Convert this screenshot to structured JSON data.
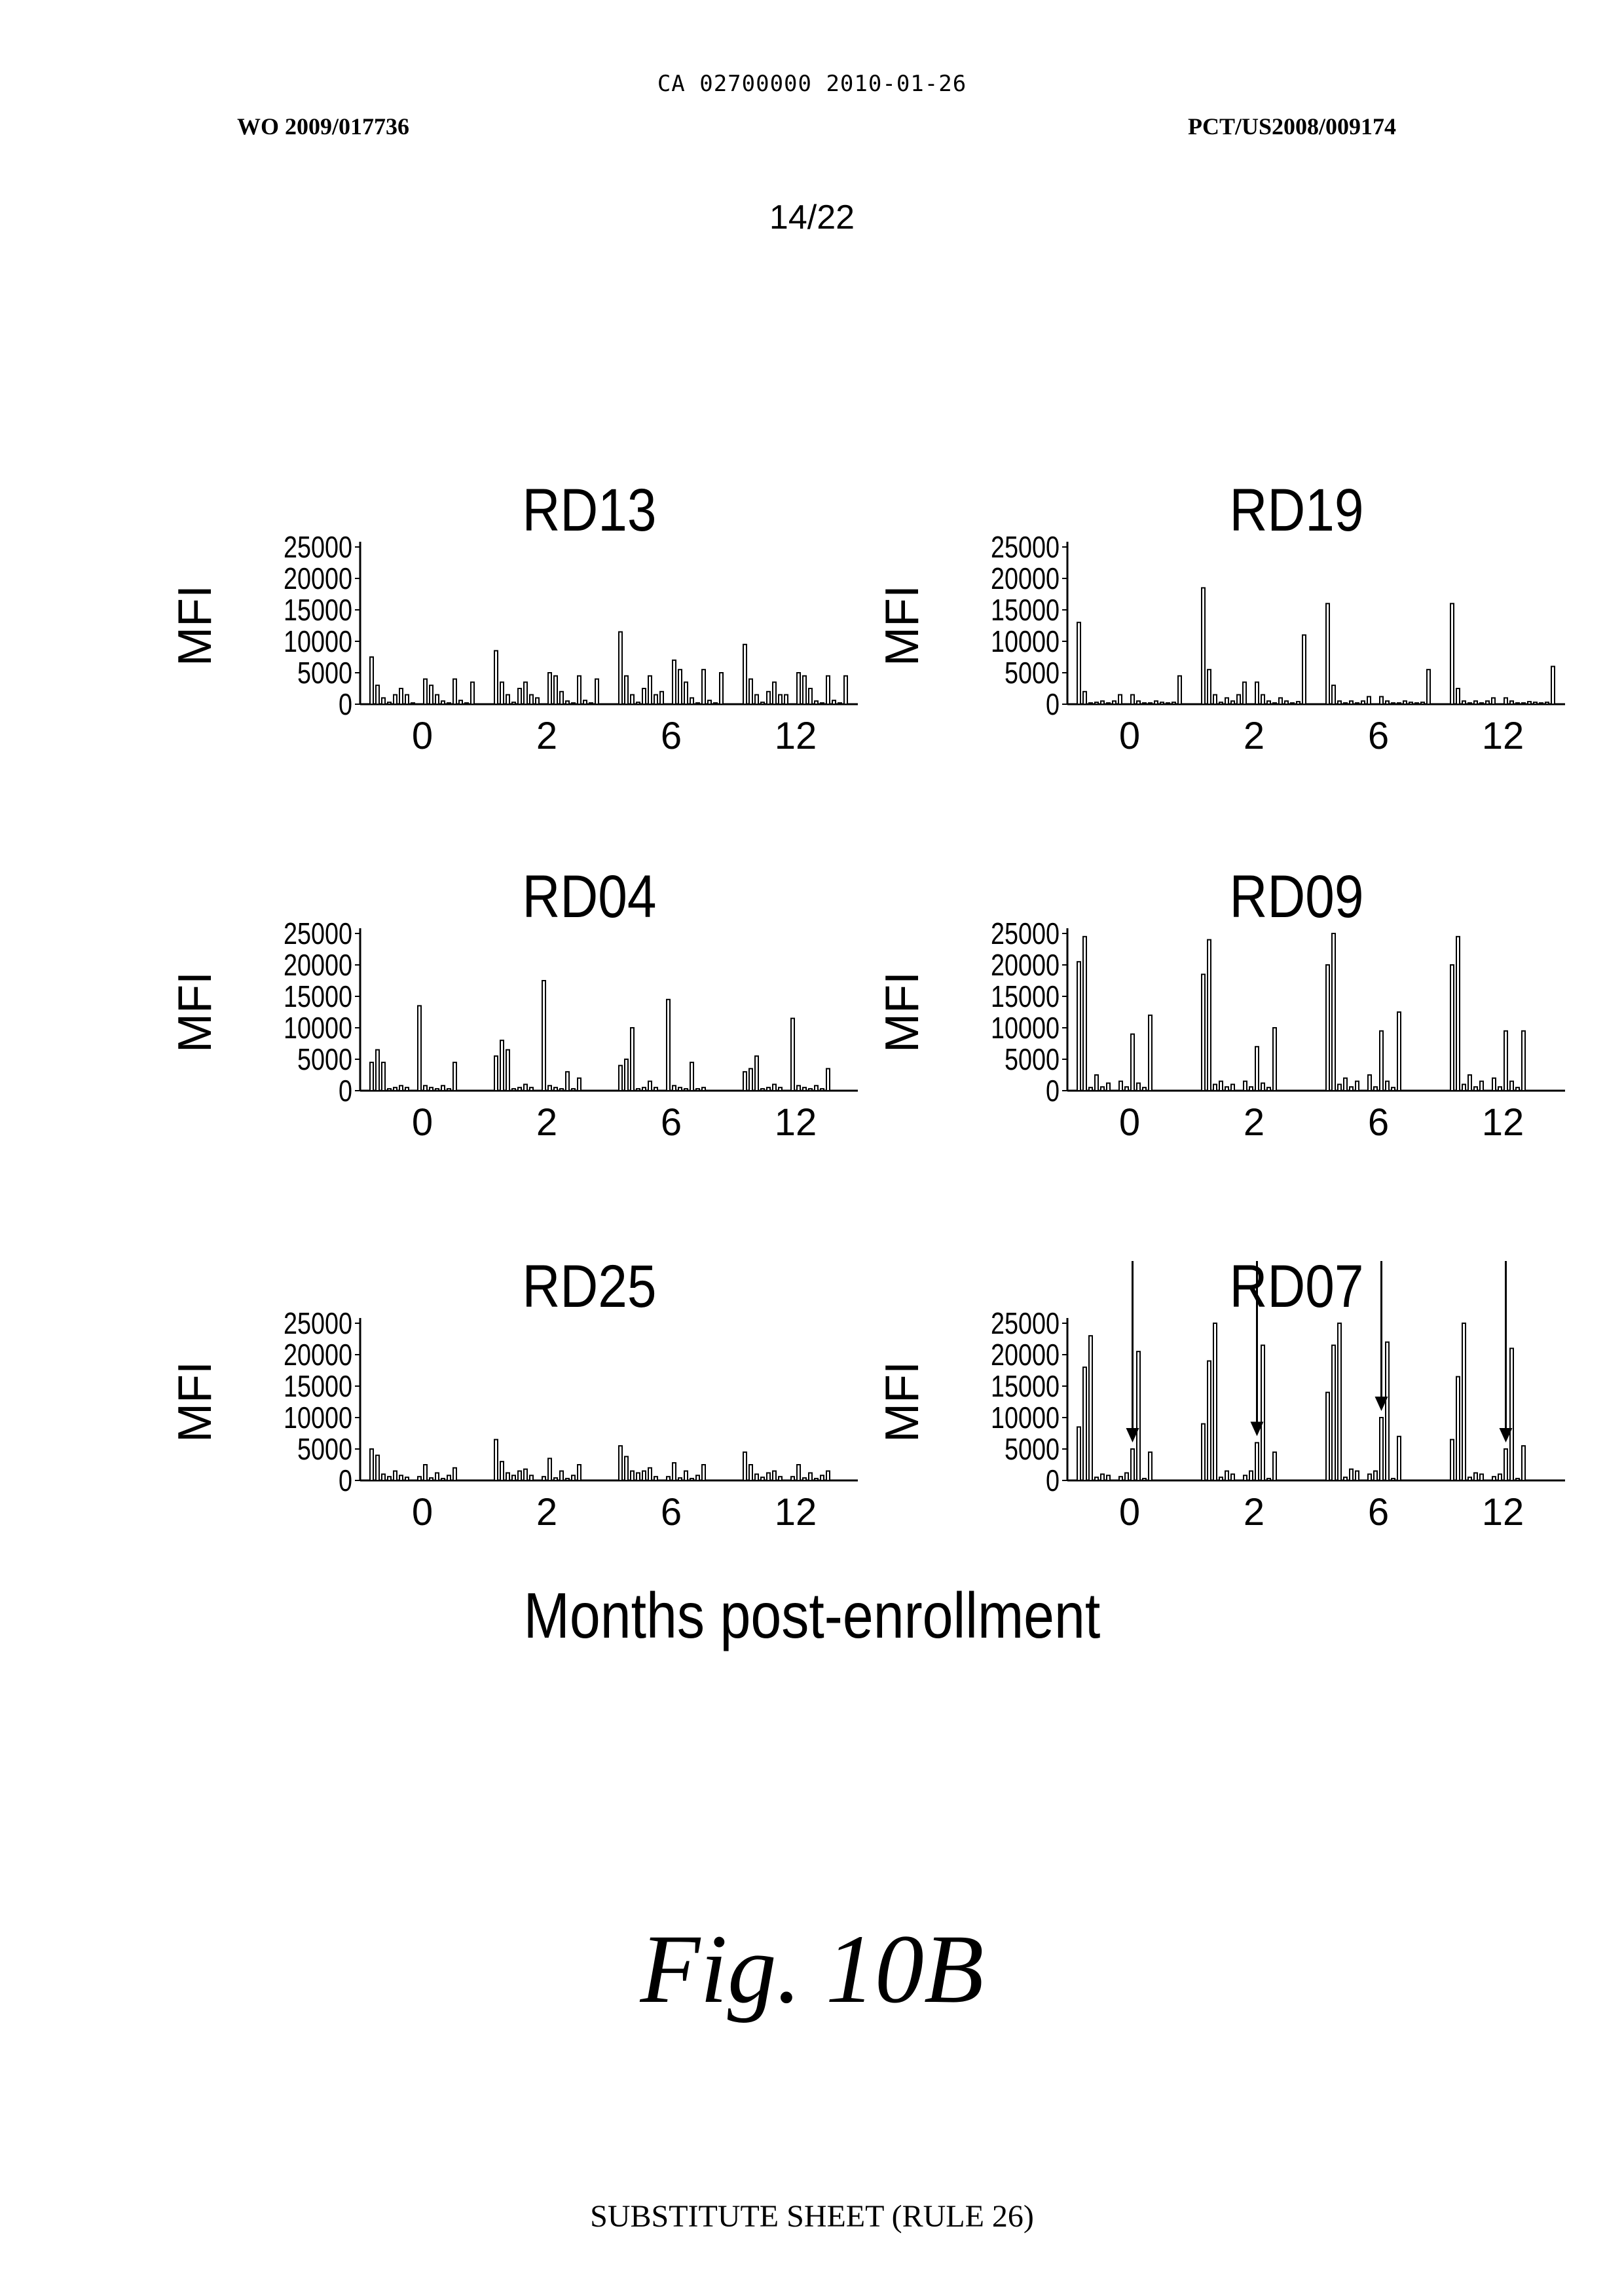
{
  "header": {
    "doc_id": "CA 02700000 2010-01-26",
    "publication": "WO 2009/017736",
    "application": "PCT/US2008/009174",
    "page": "14/22"
  },
  "figure": {
    "x_title": "Months post-enrollment",
    "label": "Fig. 10B"
  },
  "footer": "SUBSTITUTE SHEET (RULE 26)",
  "chart_data": [
    {
      "type": "bar",
      "title": "RD13",
      "ylabel": "MFI",
      "ylim": [
        0,
        25000
      ],
      "yticks": [
        "25000",
        "20000",
        "15000",
        "10000",
        "5000",
        "0"
      ],
      "categories": [
        "0",
        "2",
        "6",
        "12"
      ],
      "groups": [
        [
          7500,
          3000,
          1000,
          300,
          1500,
          2500,
          1500,
          200,
          4000,
          3000,
          1500,
          500,
          200,
          4000,
          600,
          200,
          3500
        ],
        [
          8500,
          3500,
          1500,
          300,
          2500,
          3500,
          1500,
          1000,
          5000,
          4500,
          2000,
          500,
          200,
          4500,
          600,
          200,
          4000
        ],
        [
          11500,
          4500,
          1500,
          300,
          2500,
          4500,
          1500,
          2000,
          7000,
          5500,
          3500,
          1000,
          200,
          5500,
          600,
          200,
          5000
        ],
        [
          9500,
          4000,
          1500,
          300,
          2000,
          3500,
          1500,
          1500,
          5000,
          4500,
          2500,
          500,
          200,
          4500,
          600,
          200,
          4500
        ]
      ]
    },
    {
      "type": "bar",
      "title": "RD19",
      "ylabel": "MFI",
      "ylim": [
        0,
        25000
      ],
      "yticks": [
        "25000",
        "20000",
        "15000",
        "10000",
        "5000",
        "0"
      ],
      "categories": [
        "0",
        "2",
        "6",
        "12"
      ],
      "groups": [
        [
          13000,
          2000,
          200,
          300,
          500,
          200,
          500,
          1500,
          1500,
          500,
          200,
          200,
          500,
          300,
          200,
          300,
          4500
        ],
        [
          18500,
          5500,
          1500,
          300,
          1000,
          500,
          1500,
          3500,
          3500,
          1500,
          500,
          200,
          1000,
          500,
          200,
          400,
          11000
        ],
        [
          16000,
          3000,
          500,
          200,
          500,
          200,
          500,
          1200,
          1200,
          500,
          200,
          200,
          500,
          300,
          200,
          300,
          5500
        ],
        [
          16000,
          2500,
          500,
          200,
          500,
          200,
          500,
          1000,
          1000,
          500,
          200,
          200,
          400,
          300,
          200,
          300,
          6000
        ]
      ]
    },
    {
      "type": "bar",
      "title": "RD04",
      "ylabel": "MFI",
      "ylim": [
        0,
        25000
      ],
      "yticks": [
        "25000",
        "20000",
        "15000",
        "10000",
        "5000",
        "0"
      ],
      "categories": [
        "0",
        "2",
        "6",
        "12"
      ],
      "groups": [
        [
          4500,
          6500,
          4500,
          300,
          500,
          800,
          500,
          13500,
          800,
          500,
          300,
          800,
          300,
          4500
        ],
        [
          5500,
          8000,
          6500,
          300,
          500,
          1000,
          500,
          17500,
          800,
          500,
          300,
          3000,
          300,
          2000
        ],
        [
          4000,
          5000,
          10000,
          300,
          500,
          1500,
          500,
          14500,
          800,
          500,
          300,
          4500,
          300,
          500
        ],
        [
          3000,
          3500,
          5500,
          300,
          500,
          1000,
          500,
          11500,
          800,
          500,
          300,
          800,
          300,
          3500
        ]
      ]
    },
    {
      "type": "bar",
      "title": "RD09",
      "ylabel": "MFI",
      "ylim": [
        0,
        25000
      ],
      "yticks": [
        "25000",
        "20000",
        "15000",
        "10000",
        "5000",
        "0"
      ],
      "categories": [
        "0",
        "2",
        "6",
        "12"
      ],
      "groups": [
        [
          20500,
          24500,
          500,
          2500,
          600,
          1200,
          1500,
          600,
          9000,
          1200,
          500,
          12000
        ],
        [
          18500,
          24000,
          1000,
          1500,
          600,
          1000,
          1500,
          600,
          7000,
          1200,
          500,
          10000
        ],
        [
          20000,
          25000,
          1000,
          2000,
          600,
          1500,
          2500,
          600,
          9500,
          1500,
          500,
          12500
        ],
        [
          20000,
          24500,
          1000,
          2500,
          600,
          1500,
          2000,
          600,
          9500,
          1500,
          500,
          9500
        ]
      ]
    },
    {
      "type": "bar",
      "title": "RD25",
      "ylabel": "MFI",
      "ylim": [
        0,
        25000
      ],
      "yticks": [
        "25000",
        "20000",
        "15000",
        "10000",
        "5000",
        "0"
      ],
      "categories": [
        "0",
        "2",
        "6",
        "12"
      ],
      "groups": [
        [
          5000,
          4000,
          1000,
          600,
          1500,
          800,
          500,
          600,
          2500,
          400,
          1200,
          300,
          800,
          2000
        ],
        [
          6500,
          3000,
          1200,
          800,
          1500,
          1800,
          800,
          600,
          3500,
          400,
          1500,
          300,
          800,
          2500
        ],
        [
          5500,
          3800,
          1500,
          1200,
          1500,
          2000,
          600,
          600,
          2800,
          400,
          1500,
          300,
          800,
          2500
        ],
        [
          4500,
          2500,
          1000,
          500,
          1200,
          1500,
          600,
          600,
          2500,
          400,
          1200,
          300,
          800,
          1500
        ]
      ]
    },
    {
      "type": "bar",
      "title": "RD07",
      "ylabel": "MFI",
      "ylim": [
        0,
        25000
      ],
      "yticks": [
        "25000",
        "20000",
        "15000",
        "10000",
        "5000",
        "0"
      ],
      "categories": [
        "0",
        "2",
        "6",
        "12"
      ],
      "arrows_on": "one bar per group",
      "groups": [
        [
          8500,
          18000,
          23000,
          500,
          1000,
          800,
          600,
          1200,
          5000,
          20500,
          300,
          4500
        ],
        [
          9000,
          19000,
          25000,
          500,
          1500,
          1000,
          800,
          1500,
          6000,
          21500,
          300,
          4500
        ],
        [
          14000,
          21500,
          25000,
          500,
          1800,
          1500,
          1000,
          1500,
          10000,
          22000,
          300,
          7000
        ],
        [
          6500,
          16500,
          25000,
          500,
          1200,
          1000,
          600,
          1000,
          5000,
          21000,
          300,
          5500
        ]
      ]
    }
  ]
}
